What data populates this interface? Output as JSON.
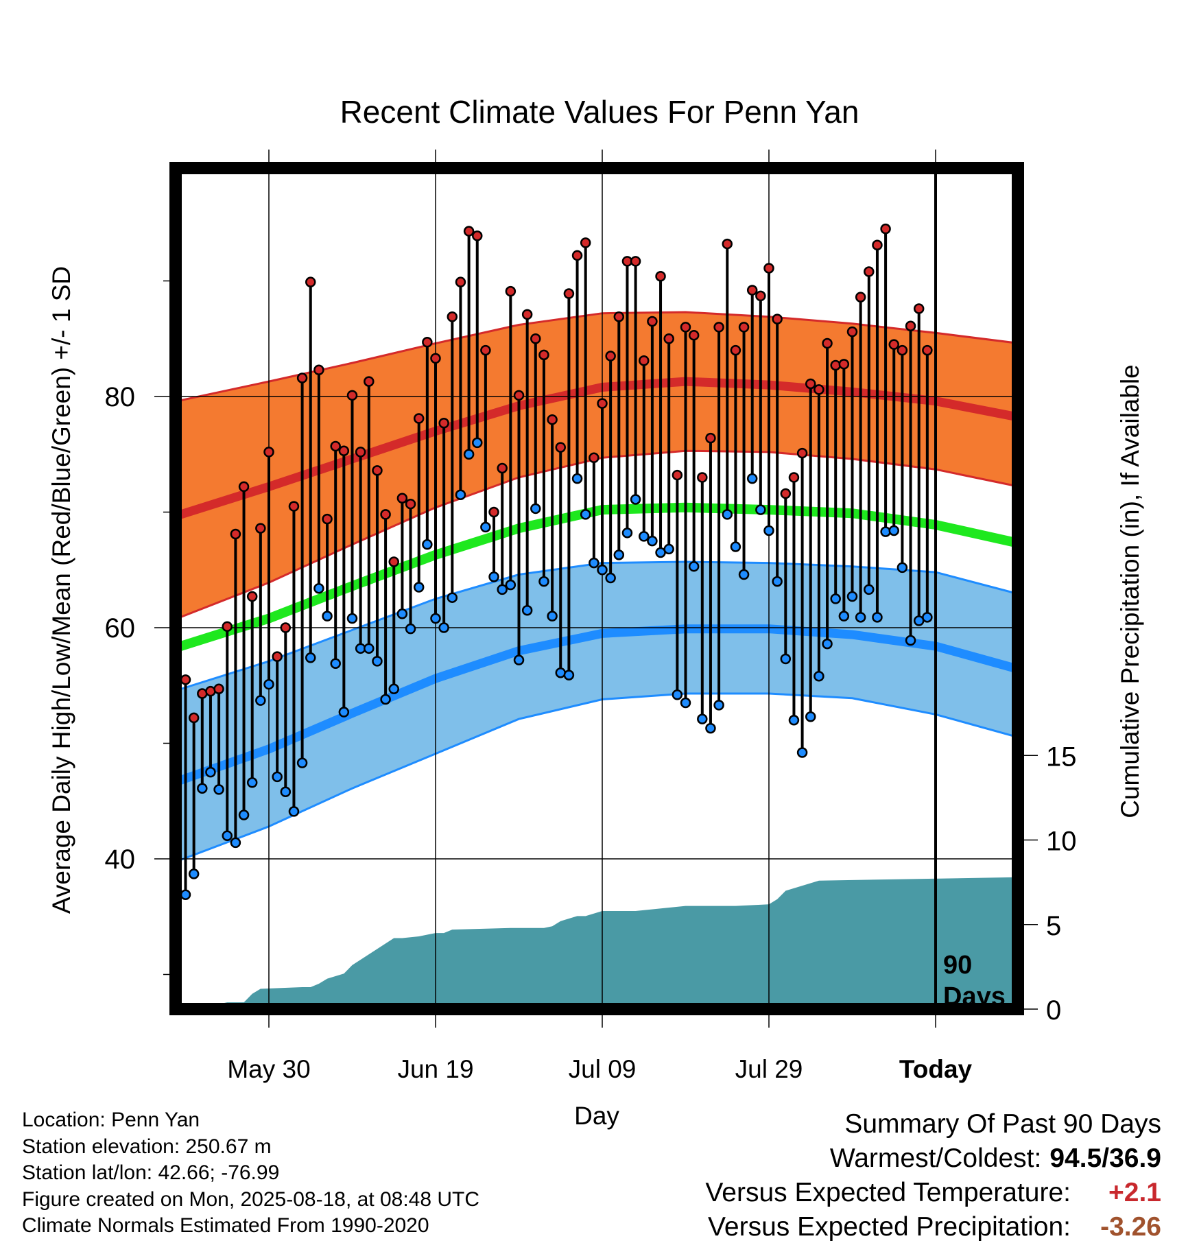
{
  "title": "Recent Climate Values For Penn Yan",
  "footer": {
    "location": "Location: Penn Yan",
    "elevation": "Station elevation: 250.67 m",
    "latlon": "Station lat/lon: 42.66; -76.99",
    "created": "Figure created on Mon, 2025-08-18, at 08:48 UTC",
    "normals": "Climate Normals Estimated From 1990-2020"
  },
  "summary": {
    "heading": "Summary Of Past 90 Days",
    "warmest_label": "Warmest/Coldest:",
    "warmest_value": "94.5/36.9",
    "temp_label": "Versus Expected Temperature:",
    "temp_value": "+2.1",
    "temp_color": "#c8282d",
    "precip_label": "Versus Expected Precipitation:",
    "precip_value": "-3.26",
    "precip_color": "#a0522d"
  },
  "today_marker": {
    "line1": "90",
    "line2": "Days"
  },
  "chart_data": {
    "type": "line",
    "title": "Recent Climate Values For Penn Yan",
    "xlabel": "Day",
    "ylabel": "Average Daily High/Low/Mean (Red/Blue/Green) +/- 1 SD",
    "y2label": "Cumulative Precipitation (in), If Available",
    "xlim": [
      -11,
      90
    ],
    "ylim": [
      30,
      100
    ],
    "y2lim": [
      0,
      20.4
    ],
    "x_ticks": [
      {
        "x": 0,
        "label": "May 30"
      },
      {
        "x": 20,
        "label": "Jun 19"
      },
      {
        "x": 40,
        "label": "Jul 09"
      },
      {
        "x": 60,
        "label": "Jul 29"
      },
      {
        "x": 80,
        "label": "Today"
      }
    ],
    "y_ticks": [
      40,
      60,
      80
    ],
    "y2_ticks": [
      0,
      5,
      10,
      15
    ],
    "colors": {
      "high": "#d42a2a",
      "high_band": "#f47a30",
      "mean": "#1ee81e",
      "low": "#1e8cff",
      "low_band": "#7fbfea",
      "precip": "#4a9aa5",
      "bar": "#000000"
    },
    "normals_x": [
      -11,
      0,
      10,
      20,
      30,
      40,
      50,
      60,
      70,
      80,
      90
    ],
    "normal_high": [
      69.7,
      72.2,
      74.6,
      77.0,
      79.2,
      80.8,
      81.3,
      81.0,
      80.4,
      79.6,
      78.2
    ],
    "normal_high_sd_upper": [
      79.6,
      81.3,
      82.9,
      84.6,
      86.2,
      87.2,
      87.3,
      86.9,
      86.3,
      85.5,
      84.6
    ],
    "normal_high_sd_lower": [
      60.8,
      63.9,
      67.2,
      70.4,
      73.0,
      74.7,
      75.3,
      75.2,
      74.6,
      73.7,
      72.2
    ],
    "normal_mean": [
      58.3,
      60.8,
      63.6,
      66.3,
      68.6,
      70.2,
      70.4,
      70.2,
      69.9,
      68.9,
      67.3
    ],
    "normal_low": [
      46.7,
      49.5,
      52.6,
      55.6,
      58.0,
      59.5,
      59.9,
      59.9,
      59.4,
      58.4,
      56.4
    ],
    "normal_low_sd_upper": [
      54.6,
      57.1,
      59.8,
      62.5,
      64.6,
      65.6,
      65.7,
      65.6,
      65.3,
      64.8,
      62.9
    ],
    "normal_low_sd_lower": [
      39.8,
      42.8,
      46.1,
      49.1,
      52.1,
      53.8,
      54.3,
      54.3,
      53.9,
      52.5,
      50.5
    ],
    "daily_x": [
      -10,
      -9,
      -8,
      -7,
      -6,
      -5,
      -4,
      -3,
      -2,
      -1,
      0,
      1,
      2,
      3,
      4,
      5,
      6,
      7,
      8,
      9,
      10,
      11,
      12,
      13,
      14,
      15,
      16,
      17,
      18,
      19,
      20,
      21,
      22,
      23,
      24,
      25,
      26,
      27,
      28,
      29,
      30,
      31,
      32,
      33,
      34,
      35,
      36,
      37,
      38,
      39,
      40,
      41,
      42,
      43,
      44,
      45,
      46,
      47,
      48,
      49,
      50,
      51,
      52,
      53,
      54,
      55,
      56,
      57,
      58,
      59,
      60,
      61,
      62,
      63,
      64,
      65,
      66,
      67,
      68,
      69,
      70,
      71,
      72,
      73,
      74,
      75,
      76,
      77,
      78,
      79
    ],
    "daily_high": [
      55.5,
      52.2,
      54.3,
      54.5,
      54.7,
      60.1,
      68.1,
      72.2,
      62.7,
      68.6,
      75.2,
      57.5,
      60.0,
      70.5,
      81.6,
      89.9,
      82.3,
      69.4,
      75.7,
      75.3,
      80.1,
      75.2,
      81.3,
      73.6,
      69.8,
      65.7,
      71.2,
      70.7,
      78.1,
      84.7,
      83.3,
      77.7,
      86.9,
      89.9,
      94.3,
      93.9,
      84.0,
      70.0,
      73.8,
      89.1,
      80.1,
      87.1,
      85.0,
      83.6,
      78.0,
      75.6,
      88.9,
      92.2,
      93.3,
      74.7,
      79.4,
      83.5,
      86.9,
      91.7,
      91.7,
      83.1,
      86.5,
      90.4,
      85.0,
      73.2,
      86.0,
      85.3,
      73.0,
      76.4,
      86.0,
      93.2,
      84.0,
      86.0,
      89.2,
      88.7,
      91.1,
      86.7,
      71.6,
      73.0,
      75.1,
      81.1,
      80.6,
      84.6,
      82.7,
      82.8,
      85.6,
      88.6,
      90.8,
      93.1,
      94.5,
      84.5,
      84.0,
      86.1,
      87.6,
      84.0
    ],
    "daily_low": [
      36.9,
      38.7,
      46.1,
      47.5,
      46.0,
      42.0,
      41.4,
      43.8,
      46.6,
      53.7,
      55.1,
      47.1,
      45.8,
      44.1,
      48.3,
      57.4,
      63.4,
      61.0,
      56.9,
      52.7,
      60.8,
      58.2,
      58.2,
      57.1,
      53.8,
      54.7,
      61.2,
      59.9,
      63.5,
      67.2,
      60.8,
      60.0,
      62.6,
      71.5,
      75.0,
      76.0,
      68.7,
      64.4,
      63.3,
      63.7,
      57.2,
      61.5,
      70.3,
      64.0,
      61.0,
      56.1,
      55.9,
      72.9,
      69.8,
      65.6,
      65.0,
      64.3,
      66.3,
      68.2,
      71.1,
      67.9,
      67.5,
      66.5,
      66.8,
      54.2,
      53.5,
      65.3,
      52.1,
      51.3,
      53.3,
      69.8,
      67.0,
      64.6,
      72.9,
      70.2,
      68.4,
      64.0,
      57.3,
      52.0,
      49.2,
      52.3,
      55.8,
      58.6,
      62.5,
      61.0,
      62.7,
      60.9,
      63.3,
      60.9,
      68.3,
      68.4,
      65.2,
      58.9,
      60.6,
      60.9
    ],
    "precip_x": [
      -11,
      -10,
      -9,
      -7,
      -6,
      -5,
      -3,
      -2,
      -1,
      4,
      5,
      6,
      7,
      9,
      10,
      15,
      16,
      18,
      19,
      20,
      21,
      22,
      29,
      30,
      32,
      33,
      34,
      35,
      37,
      38,
      40,
      43,
      44,
      50,
      51,
      55,
      56,
      60,
      61,
      62,
      66,
      90
    ],
    "precip_cum": [
      0,
      0.1,
      0.2,
      0.3,
      0.3,
      0.4,
      0.4,
      0.9,
      1.2,
      1.3,
      1.3,
      1.5,
      1.8,
      2.1,
      2.6,
      4.2,
      4.2,
      4.3,
      4.4,
      4.5,
      4.5,
      4.7,
      4.8,
      4.8,
      4.8,
      4.8,
      4.9,
      5.2,
      5.5,
      5.5,
      5.8,
      5.8,
      5.8,
      6.1,
      6.1,
      6.1,
      6.1,
      6.2,
      6.5,
      7.0,
      7.6,
      7.8
    ]
  }
}
